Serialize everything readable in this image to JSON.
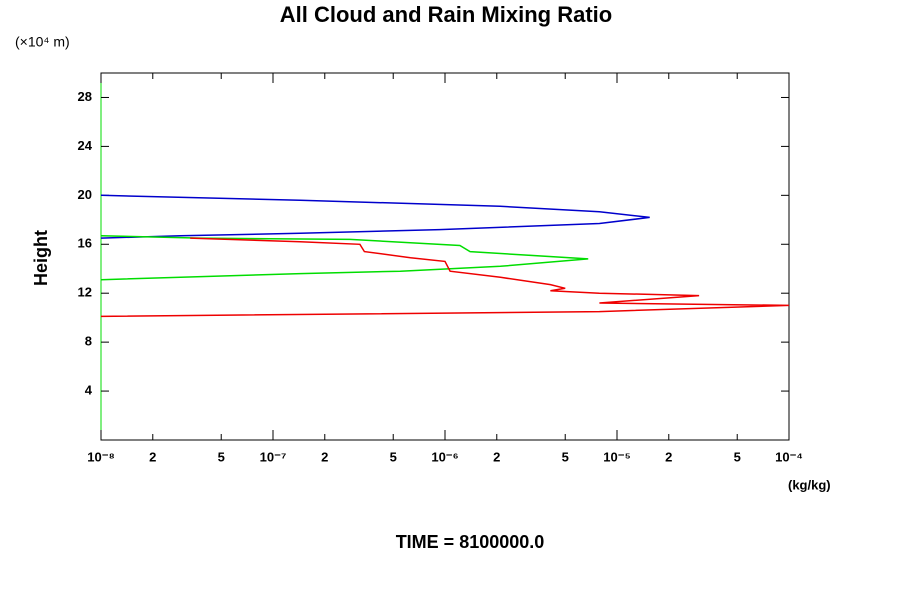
{
  "chart_data": {
    "type": "line",
    "title": "All Cloud and Rain Mixing Ratio",
    "y_unit": "(×10⁴ m)",
    "ylabel": "Height",
    "x_unit": "(kg/kg)",
    "footer": "TIME = 8100000.0",
    "xscale": "log",
    "xlim": [
      1e-08,
      0.0001
    ],
    "ylim": [
      0,
      30
    ],
    "xticks": [
      {
        "value": 1e-08,
        "label": "10⁻⁸"
      },
      {
        "value": 2e-08,
        "label": "2"
      },
      {
        "value": 5e-08,
        "label": "5"
      },
      {
        "value": 1e-07,
        "label": "10⁻⁷"
      },
      {
        "value": 2e-07,
        "label": "2"
      },
      {
        "value": 5e-07,
        "label": "5"
      },
      {
        "value": 1e-06,
        "label": "10⁻⁶"
      },
      {
        "value": 2e-06,
        "label": "2"
      },
      {
        "value": 5e-06,
        "label": "5"
      },
      {
        "value": 1e-05,
        "label": "10⁻⁵"
      },
      {
        "value": 2e-05,
        "label": "2"
      },
      {
        "value": 5e-05,
        "label": "5"
      },
      {
        "value": 0.0001,
        "label": "10⁻⁴"
      }
    ],
    "yticks": [
      4,
      8,
      12,
      16,
      20,
      24,
      28
    ],
    "series": [
      {
        "color": "#0000cc",
        "x": [
          1e-08,
          1.44e-07,
          2.09e-06,
          7.9e-06,
          1.55e-05,
          7.9e-06,
          9.3e-07,
          1.44e-07,
          2.9e-08,
          1e-08
        ],
        "values": [
          20.0,
          19.6,
          19.1,
          18.65,
          18.2,
          17.7,
          17.2,
          16.9,
          16.7,
          16.5
        ]
      },
      {
        "color": "#00dd00",
        "x": [
          1e-08,
          3.8e-08,
          2.8e-07,
          1.22e-06,
          1.4e-06,
          6.8e-06,
          2.1e-06,
          5.5e-07,
          1.44e-07,
          1e-08
        ],
        "values": [
          16.7,
          16.5,
          16.4,
          15.9,
          15.4,
          14.8,
          14.2,
          13.8,
          13.6,
          13.1
        ]
      },
      {
        "color": "#ee0000",
        "x": [
          3.3e-08,
          1.44e-07,
          3.2e-07,
          3.4e-07,
          6.3e-07,
          1e-06,
          1.07e-06,
          2.1e-06,
          4.1e-06,
          5e-06,
          4.1e-06,
          7.9e-06,
          3e-05,
          7.9e-06,
          0.0001,
          7.9e-06,
          1e-08
        ],
        "values": [
          16.5,
          16.2,
          16.0,
          15.4,
          14.9,
          14.6,
          13.8,
          13.3,
          12.7,
          12.4,
          12.2,
          12.0,
          11.8,
          11.2,
          11.0,
          10.5,
          10.1
        ]
      }
    ]
  }
}
